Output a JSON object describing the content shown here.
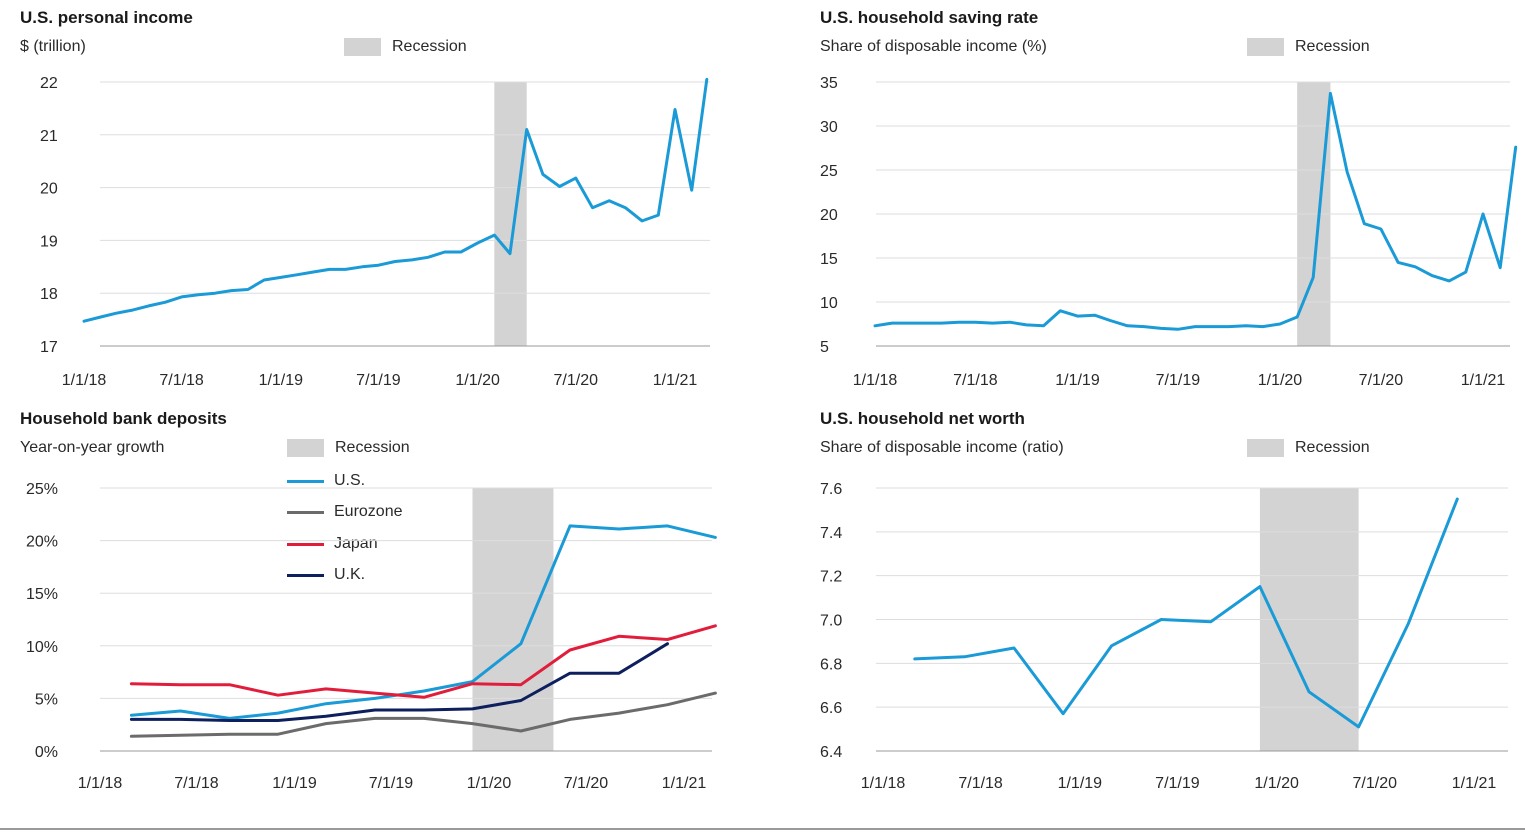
{
  "chart_data": [
    {
      "type": "line",
      "title": "U.S. personal income",
      "subtitle": "$ (trillion)",
      "legend": [
        "Recession"
      ],
      "recession": [
        "2/1/20",
        "4/1/20"
      ],
      "x_ticks": [
        "1/1/18",
        "7/1/18",
        "1/1/19",
        "7/1/19",
        "1/1/20",
        "7/1/20",
        "1/1/21"
      ],
      "y_ticks": [
        "17",
        "18",
        "19",
        "20",
        "21",
        "22"
      ],
      "ylim": [
        17,
        22
      ],
      "grid": true,
      "series": [
        {
          "color": "#1a9ad6",
          "x": [
            "1/1/18",
            "2/1/18",
            "3/1/18",
            "4/1/18",
            "5/1/18",
            "6/1/18",
            "7/1/18",
            "8/1/18",
            "9/1/18",
            "10/1/18",
            "11/1/18",
            "12/1/18",
            "1/1/19",
            "2/1/19",
            "3/1/19",
            "4/1/19",
            "5/1/19",
            "6/1/19",
            "7/1/19",
            "8/1/19",
            "9/1/19",
            "10/1/19",
            "11/1/19",
            "12/1/19",
            "1/1/20",
            "2/1/20",
            "3/1/20",
            "4/1/20",
            "5/1/20",
            "6/1/20",
            "7/1/20",
            "8/1/20",
            "9/1/20",
            "10/1/20",
            "11/1/20",
            "12/1/20",
            "1/1/21",
            "2/1/21",
            "3/1/21"
          ],
          "values": [
            17.47,
            17.55,
            17.62,
            17.68,
            17.76,
            17.83,
            17.93,
            17.97,
            18.0,
            18.05,
            18.07,
            18.25,
            18.3,
            18.35,
            18.4,
            18.45,
            18.45,
            18.5,
            18.53,
            18.6,
            18.63,
            18.68,
            18.78,
            18.78,
            18.95,
            19.1,
            18.75,
            21.1,
            20.25,
            20.02,
            20.18,
            19.62,
            19.75,
            19.62,
            19.37,
            19.48,
            21.48,
            19.95,
            22.05
          ]
        }
      ]
    },
    {
      "type": "line",
      "title": "U.S. household saving rate",
      "subtitle": "Share of disposable income (%)",
      "legend": [
        "Recession"
      ],
      "recession": [
        "2/1/20",
        "4/1/20"
      ],
      "x_ticks": [
        "1/1/18",
        "7/1/18",
        "1/1/19",
        "7/1/19",
        "1/1/20",
        "7/1/20",
        "1/1/21"
      ],
      "y_ticks": [
        "5",
        "10",
        "15",
        "20",
        "25",
        "30",
        "35"
      ],
      "ylim": [
        5,
        35
      ],
      "grid": true,
      "series": [
        {
          "color": "#1a9ad6",
          "x": [
            "1/1/18",
            "2/1/18",
            "3/1/18",
            "4/1/18",
            "5/1/18",
            "6/1/18",
            "7/1/18",
            "8/1/18",
            "9/1/18",
            "10/1/18",
            "11/1/18",
            "12/1/18",
            "1/1/19",
            "2/1/19",
            "3/1/19",
            "4/1/19",
            "5/1/19",
            "6/1/19",
            "7/1/19",
            "8/1/19",
            "9/1/19",
            "10/1/19",
            "11/1/19",
            "12/1/19",
            "1/1/20",
            "2/1/20",
            "3/1/20",
            "4/1/20",
            "5/1/20",
            "6/1/20",
            "7/1/20",
            "8/1/20",
            "9/1/20",
            "10/1/20",
            "11/1/20",
            "12/1/20",
            "1/1/21",
            "2/1/21",
            "3/1/21"
          ],
          "values": [
            7.3,
            7.6,
            7.6,
            7.6,
            7.6,
            7.7,
            7.7,
            7.6,
            7.7,
            7.4,
            7.3,
            9.0,
            8.4,
            8.5,
            7.9,
            7.3,
            7.2,
            7.0,
            6.9,
            7.2,
            7.2,
            7.2,
            7.3,
            7.2,
            7.5,
            8.3,
            12.8,
            33.7,
            24.8,
            18.9,
            18.3,
            14.5,
            14.0,
            13.0,
            12.4,
            13.4,
            20.0,
            13.9,
            27.6
          ]
        }
      ]
    },
    {
      "type": "line",
      "title": "Household bank deposits",
      "subtitle": "Year-on-year growth",
      "legend": [
        "Recession",
        "U.S.",
        "Eurozone",
        "Japan",
        "U.K."
      ],
      "recession": [
        "12/1/19",
        "5/1/20"
      ],
      "x_ticks": [
        "1/1/18",
        "7/1/18",
        "1/1/19",
        "7/1/19",
        "1/1/20",
        "7/1/20",
        "1/1/21"
      ],
      "y_ticks": [
        "0%",
        "5%",
        "10%",
        "15%",
        "20%",
        "25%"
      ],
      "ylim": [
        0,
        25
      ],
      "grid": true,
      "series": [
        {
          "name": "U.S.",
          "color": "#1a9ad6",
          "x": [
            "3/1/18",
            "6/1/18",
            "9/1/18",
            "12/1/18",
            "3/1/19",
            "6/1/19",
            "9/1/19",
            "12/1/19",
            "3/1/20",
            "6/1/20",
            "9/1/20",
            "12/1/20",
            "3/1/21"
          ],
          "values": [
            3.4,
            3.8,
            3.1,
            3.6,
            4.5,
            5.0,
            5.7,
            6.6,
            10.2,
            21.4,
            21.1,
            21.4,
            20.3
          ]
        },
        {
          "name": "Eurozone",
          "color": "#6b6b6b",
          "x": [
            "3/1/18",
            "6/1/18",
            "9/1/18",
            "12/1/18",
            "3/1/19",
            "6/1/19",
            "9/1/19",
            "12/1/19",
            "3/1/20",
            "6/1/20",
            "9/1/20",
            "12/1/20",
            "3/1/21"
          ],
          "values": [
            1.4,
            1.5,
            1.6,
            1.6,
            2.6,
            3.1,
            3.1,
            2.6,
            1.9,
            3.0,
            3.6,
            4.4,
            5.5
          ]
        },
        {
          "name": "Japan",
          "color": "#e11d3c",
          "x": [
            "3/1/18",
            "6/1/18",
            "9/1/18",
            "12/1/18",
            "3/1/19",
            "6/1/19",
            "9/1/19",
            "12/1/19",
            "3/1/20",
            "6/1/20",
            "9/1/20",
            "12/1/20",
            "3/1/21"
          ],
          "values": [
            6.4,
            6.3,
            6.3,
            5.3,
            5.9,
            5.5,
            5.1,
            6.4,
            6.3,
            9.6,
            10.9,
            10.6,
            11.9
          ]
        },
        {
          "name": "U.K.",
          "color": "#0d1f5c",
          "x": [
            "3/1/18",
            "6/1/18",
            "9/1/18",
            "12/1/18",
            "3/1/19",
            "6/1/19",
            "9/1/19",
            "12/1/19",
            "3/1/20",
            "6/1/20",
            "9/1/20",
            "12/1/20"
          ],
          "values": [
            3.0,
            3.0,
            2.9,
            2.9,
            3.3,
            3.9,
            3.9,
            4.0,
            4.8,
            7.4,
            7.4,
            10.2
          ]
        }
      ]
    },
    {
      "type": "line",
      "title": "U.S. household net worth",
      "subtitle": "Share of disposable income (ratio)",
      "legend": [
        "Recession"
      ],
      "recession": [
        "12/1/19",
        "6/1/20"
      ],
      "x_ticks": [
        "1/1/18",
        "7/1/18",
        "1/1/19",
        "7/1/19",
        "1/1/20",
        "7/1/20",
        "1/1/21"
      ],
      "y_ticks": [
        "6.4",
        "6.6",
        "6.8",
        "7.0",
        "7.2",
        "7.4",
        "7.6"
      ],
      "ylim": [
        6.4,
        7.6
      ],
      "grid": true,
      "series": [
        {
          "color": "#1a9ad6",
          "x": [
            "3/1/18",
            "6/1/18",
            "9/1/18",
            "12/1/18",
            "3/1/19",
            "6/1/19",
            "9/1/19",
            "12/1/19",
            "3/1/20",
            "6/1/20",
            "9/1/20",
            "12/1/20"
          ],
          "values": [
            6.82,
            6.83,
            6.87,
            6.57,
            6.88,
            7.0,
            6.99,
            7.15,
            6.67,
            6.51,
            6.98,
            7.55
          ]
        }
      ]
    }
  ]
}
